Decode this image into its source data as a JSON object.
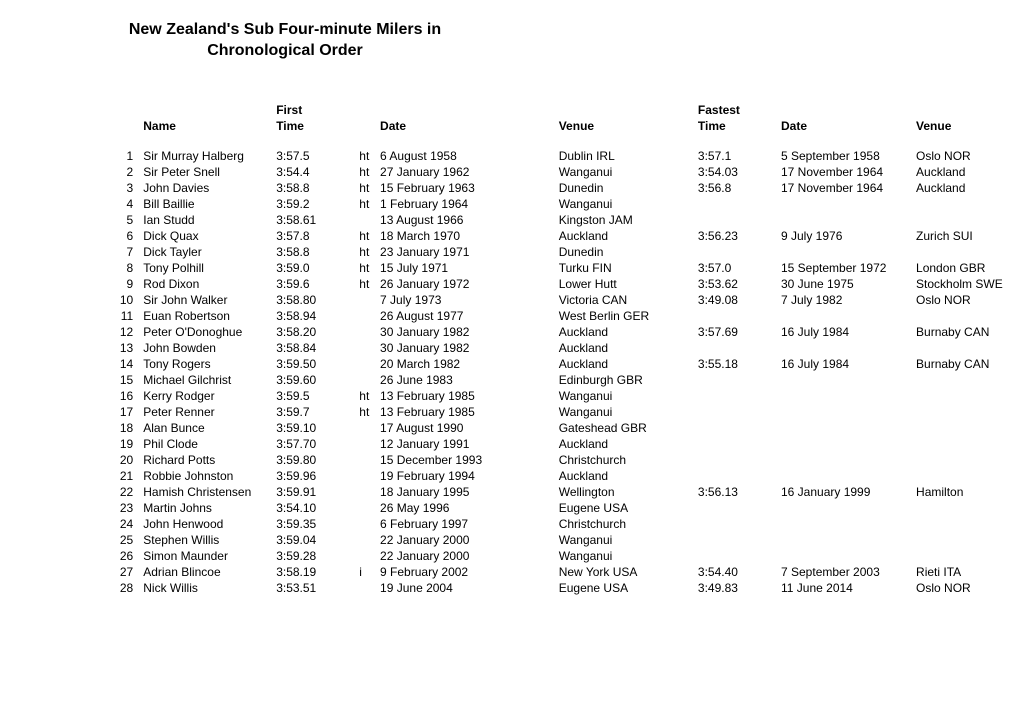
{
  "title": "New Zealand's Sub Four-minute Milers in Chronological Order",
  "headers": {
    "name": "Name",
    "first_time": "First Time",
    "date1": "Date",
    "venue1": "Venue",
    "fastest_time": "Fastest Time",
    "date2": "Date",
    "venue2": "Venue"
  },
  "rows": [
    {
      "n": "1",
      "name": "Sir Murray Halberg",
      "ft": "3:57.5",
      "ht": "ht",
      "fd": "6 August 1958",
      "fv": "Dublin IRL",
      "bt": "3:57.1",
      "bd": "5 September 1958",
      "bv": "Oslo NOR"
    },
    {
      "n": "2",
      "name": "Sir Peter Snell",
      "ft": "3:54.4",
      "ht": "ht",
      "fd": "27 January 1962",
      "fv": "Wanganui",
      "bt": "3:54.03",
      "bd": "17 November 1964",
      "bv": "Auckland"
    },
    {
      "n": "3",
      "name": "John Davies",
      "ft": "3:58.8",
      "ht": "ht",
      "fd": "15 February 1963",
      "fv": "Dunedin",
      "bt": "3:56.8",
      "bd": "17 November 1964",
      "bv": "Auckland"
    },
    {
      "n": "4",
      "name": "Bill Baillie",
      "ft": "3:59.2",
      "ht": "ht",
      "fd": "1 February 1964",
      "fv": "Wanganui",
      "bt": "",
      "bd": "",
      "bv": ""
    },
    {
      "n": "5",
      "name": "Ian Studd",
      "ft": "3:58.61",
      "ht": "",
      "fd": "13 August 1966",
      "fv": "Kingston JAM",
      "bt": "",
      "bd": "",
      "bv": ""
    },
    {
      "n": "6",
      "name": "Dick Quax",
      "ft": "3:57.8",
      "ht": "ht",
      "fd": "18 March 1970",
      "fv": "Auckland",
      "bt": "3:56.23",
      "bd": "9 July 1976",
      "bv": "Zurich SUI"
    },
    {
      "n": "7",
      "name": "Dick Tayler",
      "ft": "3:58.8",
      "ht": "ht",
      "fd": "23 January 1971",
      "fv": "Dunedin",
      "bt": "",
      "bd": "",
      "bv": ""
    },
    {
      "n": "8",
      "name": "Tony Polhill",
      "ft": "3:59.0",
      "ht": "ht",
      "fd": "15 July 1971",
      "fv": "Turku FIN",
      "bt": "3:57.0",
      "bd": "15 September 1972",
      "bv": "London GBR"
    },
    {
      "n": "9",
      "name": "Rod Dixon",
      "ft": "3:59.6",
      "ht": "ht",
      "fd": "26 January 1972",
      "fv": "Lower Hutt",
      "bt": "3:53.62",
      "bd": "30 June 1975",
      "bv": "Stockholm SWE"
    },
    {
      "n": "10",
      "name": "Sir John Walker",
      "ft": "3:58.80",
      "ht": "",
      "fd": "7 July 1973",
      "fv": "Victoria CAN",
      "bt": "3:49.08",
      "bd": "7 July 1982",
      "bv": "Oslo NOR"
    },
    {
      "n": "11",
      "name": "Euan Robertson",
      "ft": "3:58.94",
      "ht": "",
      "fd": "26 August 1977",
      "fv": "West Berlin GER",
      "bt": "",
      "bd": "",
      "bv": ""
    },
    {
      "n": "12",
      "name": "Peter O'Donoghue",
      "ft": "3:58.20",
      "ht": "",
      "fd": "30 January 1982",
      "fv": "Auckland",
      "bt": "3:57.69",
      "bd": "16 July 1984",
      "bv": "Burnaby CAN"
    },
    {
      "n": "13",
      "name": "John Bowden",
      "ft": "3:58.84",
      "ht": "",
      "fd": "30 January 1982",
      "fv": "Auckland",
      "bt": "",
      "bd": "",
      "bv": ""
    },
    {
      "n": "14",
      "name": "Tony Rogers",
      "ft": "3:59.50",
      "ht": "",
      "fd": "20 March 1982",
      "fv": "Auckland",
      "bt": "3:55.18",
      "bd": "16 July 1984",
      "bv": "Burnaby CAN"
    },
    {
      "n": "15",
      "name": "Michael Gilchrist",
      "ft": "3:59.60",
      "ht": "",
      "fd": "26 June 1983",
      "fv": "Edinburgh GBR",
      "bt": "",
      "bd": "",
      "bv": ""
    },
    {
      "n": "16",
      "name": "Kerry Rodger",
      "ft": "3:59.5",
      "ht": "ht",
      "fd": "13 February 1985",
      "fv": "Wanganui",
      "bt": "",
      "bd": "",
      "bv": ""
    },
    {
      "n": "17",
      "name": "Peter Renner",
      "ft": "3:59.7",
      "ht": "ht",
      "fd": "13 February 1985",
      "fv": "Wanganui",
      "bt": "",
      "bd": "",
      "bv": ""
    },
    {
      "n": "18",
      "name": "Alan Bunce",
      "ft": "3:59.10",
      "ht": "",
      "fd": "17 August 1990",
      "fv": "Gateshead GBR",
      "bt": "",
      "bd": "",
      "bv": ""
    },
    {
      "n": "19",
      "name": "Phil Clode",
      "ft": "3:57.70",
      "ht": "",
      "fd": "12 January 1991",
      "fv": "Auckland",
      "bt": "",
      "bd": "",
      "bv": ""
    },
    {
      "n": "20",
      "name": "Richard Potts",
      "ft": "3:59.80",
      "ht": "",
      "fd": "15 December 1993",
      "fv": "Christchurch",
      "bt": "",
      "bd": "",
      "bv": ""
    },
    {
      "n": "21",
      "name": "Robbie Johnston",
      "ft": "3:59.96",
      "ht": "",
      "fd": "19 February 1994",
      "fv": "Auckland",
      "bt": "",
      "bd": "",
      "bv": ""
    },
    {
      "n": "22",
      "name": "Hamish Christensen",
      "ft": "3:59.91",
      "ht": "",
      "fd": "18 January 1995",
      "fv": "Wellington",
      "bt": "3:56.13",
      "bd": "16 January 1999",
      "bv": "Hamilton"
    },
    {
      "n": "23",
      "name": "Martin Johns",
      "ft": "3:54.10",
      "ht": "",
      "fd": "26 May 1996",
      "fv": "Eugene USA",
      "bt": "",
      "bd": "",
      "bv": ""
    },
    {
      "n": "24",
      "name": "John Henwood",
      "ft": "3:59.35",
      "ht": "",
      "fd": "6 February 1997",
      "fv": "Christchurch",
      "bt": "",
      "bd": "",
      "bv": ""
    },
    {
      "n": "25",
      "name": "Stephen Willis",
      "ft": "3:59.04",
      "ht": "",
      "fd": "22 January 2000",
      "fv": "Wanganui",
      "bt": "",
      "bd": "",
      "bv": ""
    },
    {
      "n": "26",
      "name": "Simon Maunder",
      "ft": "3:59.28",
      "ht": "",
      "fd": "22 January 2000",
      "fv": "Wanganui",
      "bt": "",
      "bd": "",
      "bv": ""
    },
    {
      "n": "27",
      "name": "Adrian Blincoe",
      "ft": "3:58.19",
      "ht": "i",
      "fd": "9 February 2002",
      "fv": "New York USA",
      "bt": "3:54.40",
      "bd": "7 September 2003",
      "bv": "Rieti ITA"
    },
    {
      "n": "28",
      "name": "Nick Willis",
      "ft": "3:53.51",
      "ht": "",
      "fd": "19 June 2004",
      "fv": "Eugene USA",
      "bt": "3:49.83",
      "bd": "11 June 2014",
      "bv": "Oslo NOR"
    }
  ]
}
